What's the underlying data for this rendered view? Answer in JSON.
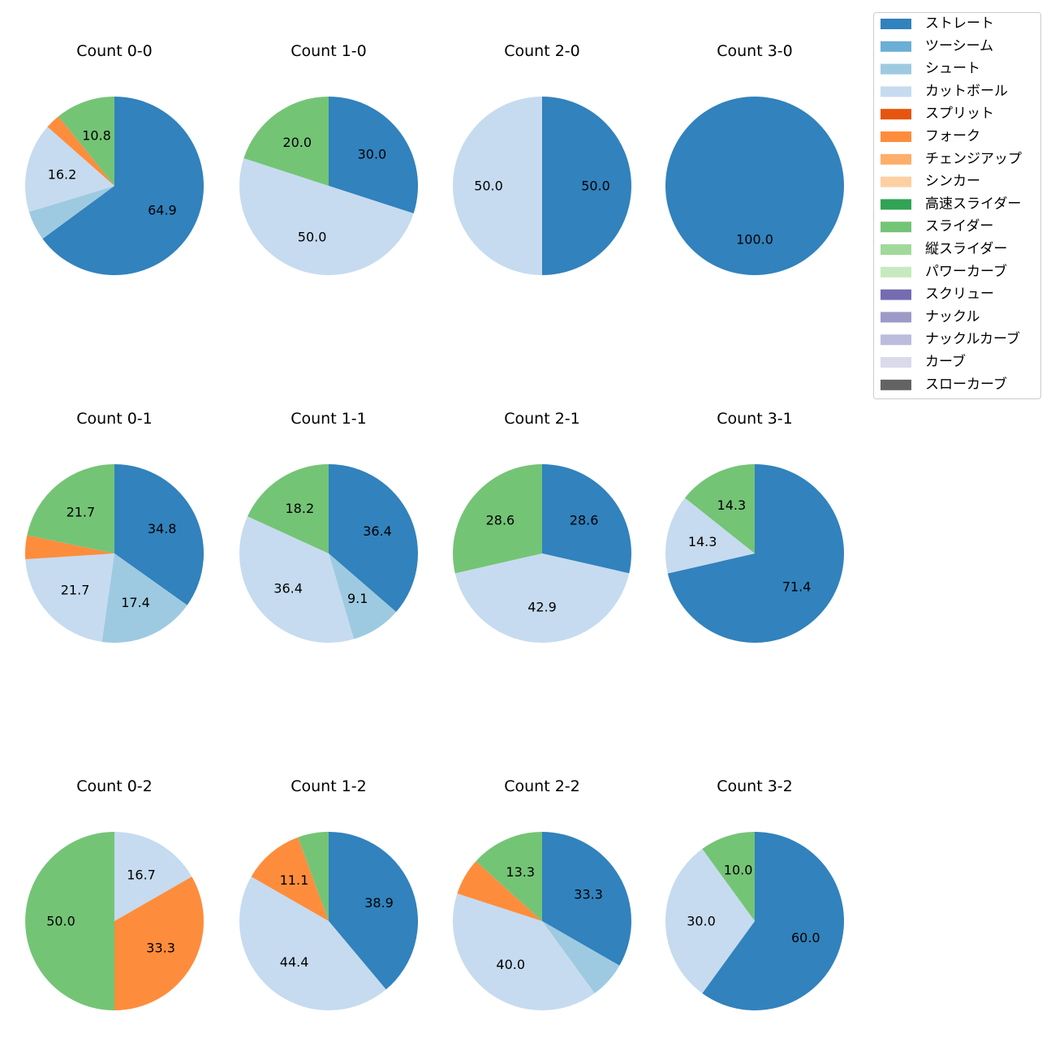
{
  "legend": [
    {
      "label": "ストレート",
      "color": "#3182bd"
    },
    {
      "label": "ツーシーム",
      "color": "#6baed6"
    },
    {
      "label": "シュート",
      "color": "#9ecae1"
    },
    {
      "label": "カットボール",
      "color": "#c6dbef"
    },
    {
      "label": "スプリット",
      "color": "#e6550d"
    },
    {
      "label": "フォーク",
      "color": "#fd8d3c"
    },
    {
      "label": "チェンジアップ",
      "color": "#fdae6b"
    },
    {
      "label": "シンカー",
      "color": "#fdd0a2"
    },
    {
      "label": "高速スライダー",
      "color": "#31a354"
    },
    {
      "label": "スライダー",
      "color": "#74c476"
    },
    {
      "label": "縦スライダー",
      "color": "#a1d99b"
    },
    {
      "label": "パワーカーブ",
      "color": "#c7e9c0"
    },
    {
      "label": "スクリュー",
      "color": "#756bb1"
    },
    {
      "label": "ナックル",
      "color": "#9e9ac8"
    },
    {
      "label": "ナックルカーブ",
      "color": "#bcbddc"
    },
    {
      "label": "カーブ",
      "color": "#dadaeb"
    },
    {
      "label": "スローカーブ",
      "color": "#636363"
    }
  ],
  "chart_data": [
    {
      "type": "pie",
      "title": "Count 0-0",
      "slices": [
        {
          "pitch": "ストレート",
          "value": 64.9
        },
        {
          "pitch": "シュート",
          "value": 5.4
        },
        {
          "pitch": "カットボール",
          "value": 16.2
        },
        {
          "pitch": "フォーク",
          "value": 2.7
        },
        {
          "pitch": "スライダー",
          "value": 10.8
        }
      ]
    },
    {
      "type": "pie",
      "title": "Count 1-0",
      "slices": [
        {
          "pitch": "ストレート",
          "value": 30.0
        },
        {
          "pitch": "カットボール",
          "value": 50.0
        },
        {
          "pitch": "スライダー",
          "value": 20.0
        }
      ]
    },
    {
      "type": "pie",
      "title": "Count 2-0",
      "slices": [
        {
          "pitch": "ストレート",
          "value": 50.0
        },
        {
          "pitch": "カットボール",
          "value": 50.0
        }
      ]
    },
    {
      "type": "pie",
      "title": "Count 3-0",
      "slices": [
        {
          "pitch": "ストレート",
          "value": 100.0
        }
      ]
    },
    {
      "type": "pie",
      "title": "Count 0-1",
      "slices": [
        {
          "pitch": "ストレート",
          "value": 34.8
        },
        {
          "pitch": "シュート",
          "value": 17.4
        },
        {
          "pitch": "カットボール",
          "value": 21.7
        },
        {
          "pitch": "フォーク",
          "value": 4.3
        },
        {
          "pitch": "スライダー",
          "value": 21.7
        }
      ]
    },
    {
      "type": "pie",
      "title": "Count 1-1",
      "slices": [
        {
          "pitch": "ストレート",
          "value": 36.4
        },
        {
          "pitch": "シュート",
          "value": 9.1
        },
        {
          "pitch": "カットボール",
          "value": 36.4
        },
        {
          "pitch": "スライダー",
          "value": 18.2
        }
      ]
    },
    {
      "type": "pie",
      "title": "Count 2-1",
      "slices": [
        {
          "pitch": "ストレート",
          "value": 28.6
        },
        {
          "pitch": "カットボール",
          "value": 42.9
        },
        {
          "pitch": "スライダー",
          "value": 28.6
        }
      ]
    },
    {
      "type": "pie",
      "title": "Count 3-1",
      "slices": [
        {
          "pitch": "ストレート",
          "value": 71.4
        },
        {
          "pitch": "カットボール",
          "value": 14.3
        },
        {
          "pitch": "スライダー",
          "value": 14.3
        }
      ]
    },
    {
      "type": "pie",
      "title": "Count 0-2",
      "slices": [
        {
          "pitch": "カットボール",
          "value": 16.7
        },
        {
          "pitch": "フォーク",
          "value": 33.3
        },
        {
          "pitch": "スライダー",
          "value": 50.0
        }
      ]
    },
    {
      "type": "pie",
      "title": "Count 1-2",
      "slices": [
        {
          "pitch": "ストレート",
          "value": 38.9
        },
        {
          "pitch": "カットボール",
          "value": 44.4
        },
        {
          "pitch": "フォーク",
          "value": 11.1
        },
        {
          "pitch": "スライダー",
          "value": 5.6
        }
      ]
    },
    {
      "type": "pie",
      "title": "Count 2-2",
      "slices": [
        {
          "pitch": "ストレート",
          "value": 33.3
        },
        {
          "pitch": "シュート",
          "value": 6.7
        },
        {
          "pitch": "カットボール",
          "value": 40.0
        },
        {
          "pitch": "フォーク",
          "value": 6.7
        },
        {
          "pitch": "スライダー",
          "value": 13.3
        }
      ]
    },
    {
      "type": "pie",
      "title": "Count 3-2",
      "slices": [
        {
          "pitch": "ストレート",
          "value": 60.0
        },
        {
          "pitch": "カットボール",
          "value": 30.0
        },
        {
          "pitch": "スライダー",
          "value": 10.0
        }
      ]
    }
  ]
}
